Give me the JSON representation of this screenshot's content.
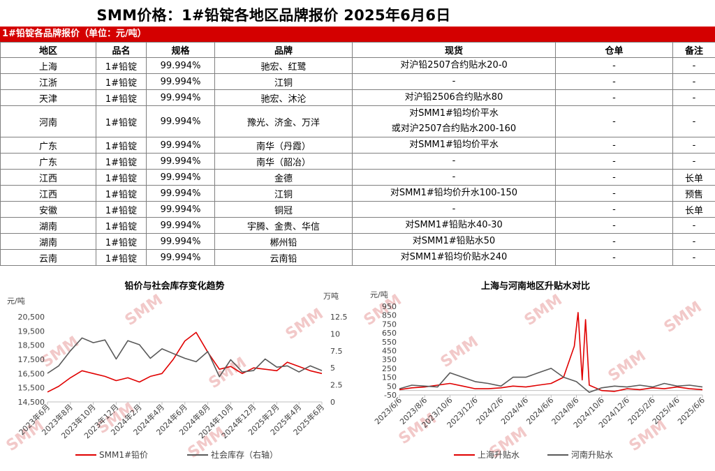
{
  "header": {
    "title": "SMM价格：1#铅锭各地区品牌报价 2025年6月6日"
  },
  "table": {
    "caption": "1#铅锭各品牌报价（单位：元/吨）",
    "columns": [
      "地区",
      "品名",
      "规格",
      "品牌",
      "现货",
      "仓单",
      "备注"
    ],
    "rows": [
      {
        "region": "上海",
        "product": "1#铅锭",
        "spec": "99.994%",
        "brand": "驰宏、红鹭",
        "spot": [
          "对沪铅2507合约贴水20-0"
        ],
        "warrant": "-",
        "note": "-"
      },
      {
        "region": "江浙",
        "product": "1#铅锭",
        "spec": "99.994%",
        "brand": "江铜",
        "spot": [
          "-"
        ],
        "warrant": "-",
        "note": "-"
      },
      {
        "region": "天津",
        "product": "1#铅锭",
        "spec": "99.994%",
        "brand": "驰宏、沐沦",
        "spot": [
          "对沪铅2506合约贴水80"
        ],
        "warrant": "-",
        "note": "-"
      },
      {
        "region": "河南",
        "product": "1#铅锭",
        "spec": "99.994%",
        "brand": "豫光、济金、万洋",
        "spot": [
          "对SMM1#铅均价平水",
          "或对沪2507合约贴水200-160"
        ],
        "warrant": "-",
        "note": "-"
      },
      {
        "region": "广东",
        "product": "1#铅锭",
        "spec": "99.994%",
        "brand": "南华（丹霞）",
        "spot": [
          "对SMM1#铅均价平水"
        ],
        "warrant": "-",
        "note": "-"
      },
      {
        "region": "广东",
        "product": "1#铅锭",
        "spec": "99.994%",
        "brand": "南华（韶冶）",
        "spot": [
          "-"
        ],
        "warrant": "-",
        "note": "-"
      },
      {
        "region": "江西",
        "product": "1#铅锭",
        "spec": "99.994%",
        "brand": "金德",
        "spot": [
          "-"
        ],
        "warrant": "-",
        "note": "长单"
      },
      {
        "region": "江西",
        "product": "1#铅锭",
        "spec": "99.994%",
        "brand": "江铜",
        "spot": [
          "对SMM1#铅均价升水100-150"
        ],
        "warrant": "-",
        "note": "预售"
      },
      {
        "region": "安徽",
        "product": "1#铅锭",
        "spec": "99.994%",
        "brand": "铜冠",
        "spot": [
          "-"
        ],
        "warrant": "-",
        "note": "长单"
      },
      {
        "region": "湖南",
        "product": "1#铅锭",
        "spec": "99.994%",
        "brand": "宇腾、金贵、华信",
        "spot": [
          "对SMM1#铅贴水40-30"
        ],
        "warrant": "-",
        "note": "-"
      },
      {
        "region": "湖南",
        "product": "1#铅锭",
        "spec": "99.994%",
        "brand": "郴州铅",
        "spot": [
          "对SMM1#铅贴水50"
        ],
        "warrant": "-",
        "note": "-"
      },
      {
        "region": "云南",
        "product": "1#铅锭",
        "spec": "99.994%",
        "brand": "云南铅",
        "spot": [
          "对SMM1#铅均价贴水240"
        ],
        "warrant": "-",
        "note": "-"
      }
    ]
  },
  "watermark": {
    "text": "SMM",
    "color": "#f2c9c9"
  },
  "colors": {
    "accent_red": "#d40000",
    "series_red": "#e00000",
    "series_gray": "#595959",
    "axis": "#bfbfbf"
  },
  "chart_data": [
    {
      "type": "line",
      "title": "铅价与社会库存变化趋势",
      "ylabel": "元/吨",
      "y2label": "万吨",
      "ylim": [
        14500,
        20500
      ],
      "y_ticks": [
        "14,500",
        "15,500",
        "16,500",
        "17,500",
        "18,500",
        "19,500",
        "20,500"
      ],
      "y_tick_values": [
        14500,
        15500,
        16500,
        17500,
        18500,
        19500,
        20500
      ],
      "y2lim": [
        0,
        12.5
      ],
      "y2_ticks": [
        "0",
        "2.5",
        "5",
        "7.5",
        "10",
        "12.5"
      ],
      "y2_tick_values": [
        0,
        2.5,
        5,
        7.5,
        10,
        12.5
      ],
      "x_tick_labels": [
        "2023年6月",
        "2023年8月",
        "2023年10月",
        "2023年12月",
        "2024年2月",
        "2024年4月",
        "2024年6月",
        "2024年8月",
        "2024年10月",
        "2024年12月",
        "2025年2月",
        "2025年4月",
        "2025年6月"
      ],
      "x_tick_positions": [
        "2023-06",
        "2023-08",
        "2023-10",
        "2023-12",
        "2024-02",
        "2024-04",
        "2024-06",
        "2024-08",
        "2024-10",
        "2024-12",
        "2025-02",
        "2025-04",
        "2025-06"
      ],
      "x_range": [
        "2023-06",
        "2025-06"
      ],
      "legend_position": "bottom",
      "series": [
        {
          "name": "SMM1#铅价",
          "axis": "left",
          "color": "#e00000",
          "x": [
            "2023-06",
            "2023-07",
            "2023-08",
            "2023-09",
            "2023-10",
            "2023-11",
            "2023-12",
            "2024-01",
            "2024-02",
            "2024-03",
            "2024-04",
            "2024-05",
            "2024-06",
            "2024-07",
            "2024-08",
            "2024-09",
            "2024-10",
            "2024-11",
            "2024-12",
            "2025-01",
            "2025-02",
            "2025-03",
            "2025-04",
            "2025-05",
            "2025-06"
          ],
          "values": [
            15200,
            15600,
            16200,
            16700,
            16500,
            16300,
            16000,
            16200,
            15900,
            16300,
            16500,
            17500,
            18800,
            19400,
            18000,
            16800,
            17000,
            16500,
            16900,
            16800,
            16700,
            17300,
            17000,
            16700,
            16500
          ]
        },
        {
          "name": "社会库存（右轴）",
          "axis": "right",
          "color": "#595959",
          "x": [
            "2023-06",
            "2023-07",
            "2023-08",
            "2023-09",
            "2023-10",
            "2023-11",
            "2023-12",
            "2024-01",
            "2024-02",
            "2024-03",
            "2024-04",
            "2024-05",
            "2024-06",
            "2024-07",
            "2024-08",
            "2024-09",
            "2024-10",
            "2024-11",
            "2024-12",
            "2025-01",
            "2025-02",
            "2025-03",
            "2025-04",
            "2025-05",
            "2025-06"
          ],
          "values": [
            4.2,
            5.3,
            7.5,
            9.4,
            8.7,
            9.1,
            6.3,
            9.0,
            8.4,
            6.4,
            7.8,
            7.1,
            6.4,
            5.9,
            7.4,
            3.7,
            6.2,
            4.4,
            4.6,
            6.3,
            5.1,
            5.3,
            4.4,
            5.3,
            4.6
          ]
        }
      ]
    },
    {
      "type": "line",
      "title": "上海与河南地区升贴水对比",
      "ylabel": "元/吨",
      "ylim": [
        -50,
        950
      ],
      "y_ticks": [
        "-50",
        "50",
        "150",
        "250",
        "350",
        "450",
        "550",
        "650",
        "750",
        "850",
        "950"
      ],
      "y_tick_values": [
        -50,
        50,
        150,
        250,
        350,
        450,
        550,
        650,
        750,
        850,
        950
      ],
      "x_tick_labels": [
        "2023/6/6",
        "2023/8/6",
        "2023/10/6",
        "2023/12/6",
        "2024/2/6",
        "2024/4/6",
        "2024/6/6",
        "2024/8/6",
        "2024/10/6",
        "2024/12/6",
        "2025/2/6",
        "2025/4/6",
        "2025/6/6"
      ],
      "x_tick_positions": [
        "2023-06-06",
        "2023-08-06",
        "2023-10-06",
        "2023-12-06",
        "2024-02-06",
        "2024-04-06",
        "2024-06-06",
        "2024-08-06",
        "2024-10-06",
        "2024-12-06",
        "2025-02-06",
        "2025-04-06",
        "2025-06-06"
      ],
      "x_range": [
        "2023-06-06",
        "2025-06-06"
      ],
      "legend_position": "bottom",
      "series": [
        {
          "name": "上海升贴水",
          "color": "#e00000",
          "x": [
            "2023-06-06",
            "2023-07-06",
            "2023-08-06",
            "2023-09-06",
            "2023-10-06",
            "2023-11-06",
            "2023-12-06",
            "2024-01-06",
            "2024-02-06",
            "2024-03-06",
            "2024-04-06",
            "2024-05-06",
            "2024-06-06",
            "2024-07-06",
            "2024-08-01",
            "2024-08-10",
            "2024-08-20",
            "2024-08-28",
            "2024-09-06",
            "2024-10-06",
            "2024-11-06",
            "2024-12-06",
            "2025-01-06",
            "2025-02-06",
            "2025-03-06",
            "2025-04-06",
            "2025-05-06",
            "2025-06-06"
          ],
          "values": [
            10,
            30,
            40,
            60,
            80,
            50,
            20,
            20,
            30,
            50,
            40,
            60,
            80,
            150,
            500,
            880,
            120,
            800,
            60,
            0,
            -10,
            20,
            10,
            30,
            20,
            40,
            20,
            10
          ]
        },
        {
          "name": "河南升贴水",
          "color": "#595959",
          "x": [
            "2023-06-06",
            "2023-07-06",
            "2023-08-06",
            "2023-09-06",
            "2023-10-06",
            "2023-11-06",
            "2023-12-06",
            "2024-01-06",
            "2024-02-06",
            "2024-03-06",
            "2024-04-06",
            "2024-05-06",
            "2024-06-06",
            "2024-07-06",
            "2024-08-06",
            "2024-09-06",
            "2024-10-06",
            "2024-11-06",
            "2024-12-06",
            "2025-01-06",
            "2025-02-06",
            "2025-03-06",
            "2025-04-06",
            "2025-05-06",
            "2025-06-06"
          ],
          "values": [
            20,
            60,
            50,
            40,
            200,
            150,
            100,
            80,
            50,
            150,
            150,
            200,
            250,
            150,
            100,
            -20,
            30,
            50,
            40,
            60,
            40,
            80,
            50,
            60,
            40
          ]
        }
      ]
    }
  ]
}
